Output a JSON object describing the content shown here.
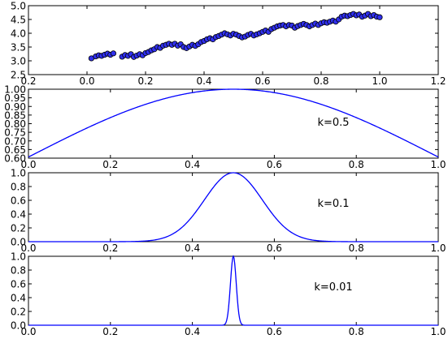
{
  "chart_data": [
    {
      "type": "scatter",
      "xlim": [
        -0.2,
        1.2
      ],
      "ylim": [
        2.5,
        5.0
      ],
      "xticks": [
        "0.2",
        "0.0",
        "0.2",
        "0.4",
        "0.6",
        "0.8",
        "1.0",
        "1.2"
      ],
      "yticks": [
        "2.5",
        "3.0",
        "3.5",
        "4.0",
        "4.5",
        "5.0"
      ],
      "marker_color": "#3030ee",
      "marker_edge": "#000000",
      "points": [
        [
          0.015,
          3.09
        ],
        [
          0.03,
          3.16
        ],
        [
          0.04,
          3.2
        ],
        [
          0.05,
          3.18
        ],
        [
          0.06,
          3.22
        ],
        [
          0.07,
          3.26
        ],
        [
          0.08,
          3.22
        ],
        [
          0.09,
          3.27
        ],
        [
          0.12,
          3.15
        ],
        [
          0.13,
          3.21
        ],
        [
          0.14,
          3.18
        ],
        [
          0.15,
          3.24
        ],
        [
          0.16,
          3.14
        ],
        [
          0.17,
          3.19
        ],
        [
          0.18,
          3.24
        ],
        [
          0.19,
          3.2
        ],
        [
          0.2,
          3.28
        ],
        [
          0.21,
          3.32
        ],
        [
          0.22,
          3.38
        ],
        [
          0.23,
          3.42
        ],
        [
          0.24,
          3.5
        ],
        [
          0.25,
          3.47
        ],
        [
          0.26,
          3.55
        ],
        [
          0.27,
          3.58
        ],
        [
          0.28,
          3.62
        ],
        [
          0.29,
          3.58
        ],
        [
          0.3,
          3.62
        ],
        [
          0.31,
          3.55
        ],
        [
          0.32,
          3.6
        ],
        [
          0.33,
          3.5
        ],
        [
          0.34,
          3.46
        ],
        [
          0.35,
          3.52
        ],
        [
          0.36,
          3.58
        ],
        [
          0.37,
          3.54
        ],
        [
          0.38,
          3.6
        ],
        [
          0.39,
          3.68
        ],
        [
          0.4,
          3.72
        ],
        [
          0.41,
          3.78
        ],
        [
          0.42,
          3.82
        ],
        [
          0.43,
          3.78
        ],
        [
          0.44,
          3.86
        ],
        [
          0.45,
          3.9
        ],
        [
          0.46,
          3.95
        ],
        [
          0.47,
          4.0
        ],
        [
          0.48,
          3.96
        ],
        [
          0.49,
          3.92
        ],
        [
          0.5,
          3.98
        ],
        [
          0.51,
          3.95
        ],
        [
          0.52,
          3.9
        ],
        [
          0.53,
          3.85
        ],
        [
          0.54,
          3.88
        ],
        [
          0.55,
          3.94
        ],
        [
          0.56,
          3.98
        ],
        [
          0.57,
          3.92
        ],
        [
          0.58,
          3.96
        ],
        [
          0.59,
          4.0
        ],
        [
          0.6,
          4.05
        ],
        [
          0.61,
          4.1
        ],
        [
          0.62,
          4.05
        ],
        [
          0.63,
          4.15
        ],
        [
          0.64,
          4.2
        ],
        [
          0.65,
          4.25
        ],
        [
          0.66,
          4.28
        ],
        [
          0.67,
          4.3
        ],
        [
          0.68,
          4.25
        ],
        [
          0.69,
          4.3
        ],
        [
          0.7,
          4.28
        ],
        [
          0.71,
          4.2
        ],
        [
          0.72,
          4.26
        ],
        [
          0.73,
          4.3
        ],
        [
          0.74,
          4.34
        ],
        [
          0.75,
          4.3
        ],
        [
          0.76,
          4.25
        ],
        [
          0.77,
          4.3
        ],
        [
          0.78,
          4.35
        ],
        [
          0.79,
          4.3
        ],
        [
          0.8,
          4.36
        ],
        [
          0.81,
          4.4
        ],
        [
          0.82,
          4.38
        ],
        [
          0.83,
          4.42
        ],
        [
          0.84,
          4.46
        ],
        [
          0.85,
          4.42
        ],
        [
          0.86,
          4.5
        ],
        [
          0.87,
          4.6
        ],
        [
          0.88,
          4.64
        ],
        [
          0.89,
          4.62
        ],
        [
          0.9,
          4.66
        ],
        [
          0.91,
          4.7
        ],
        [
          0.92,
          4.65
        ],
        [
          0.93,
          4.68
        ],
        [
          0.94,
          4.6
        ],
        [
          0.95,
          4.64
        ],
        [
          0.96,
          4.7
        ],
        [
          0.97,
          4.62
        ],
        [
          0.98,
          4.66
        ],
        [
          0.99,
          4.6
        ],
        [
          1.0,
          4.58
        ]
      ]
    },
    {
      "type": "line",
      "xlim": [
        0.0,
        1.0
      ],
      "ylim": [
        0.6,
        1.0
      ],
      "k": 0.5,
      "function": "exp(-(x-0.5)^2 / k)",
      "xticks": [
        "0.0",
        "0.2",
        "0.4",
        "0.6",
        "0.8",
        "1.0"
      ],
      "yticks": [
        "0.60",
        "0.65",
        "0.70",
        "0.75",
        "0.80",
        "0.85",
        "0.90",
        "0.95",
        "1.00"
      ],
      "annotation": "k=0.5",
      "line_color": "#0000ff"
    },
    {
      "type": "line",
      "xlim": [
        0.0,
        1.0
      ],
      "ylim": [
        0.0,
        1.0
      ],
      "k": 0.1,
      "function": "exp(-(x-0.5)^2 / k^2)",
      "xticks": [
        "0.0",
        "0.2",
        "0.4",
        "0.6",
        "0.8",
        "1.0"
      ],
      "yticks": [
        "0.0",
        "0.2",
        "0.4",
        "0.6",
        "0.8",
        "1.0"
      ],
      "annotation": "k=0.1",
      "line_color": "#0000ff"
    },
    {
      "type": "line",
      "xlim": [
        0.0,
        1.0
      ],
      "ylim": [
        0.0,
        1.0
      ],
      "k": 0.01,
      "function": "exp(-(x-0.5)^2 / k^2)",
      "xticks": [
        "0.0",
        "0.2",
        "0.4",
        "0.6",
        "0.8",
        "1.0"
      ],
      "yticks": [
        "0.0",
        "0.2",
        "0.4",
        "0.6",
        "0.8",
        "1.0"
      ],
      "annotation": "k=0.01",
      "line_color": "#0000ff"
    }
  ]
}
